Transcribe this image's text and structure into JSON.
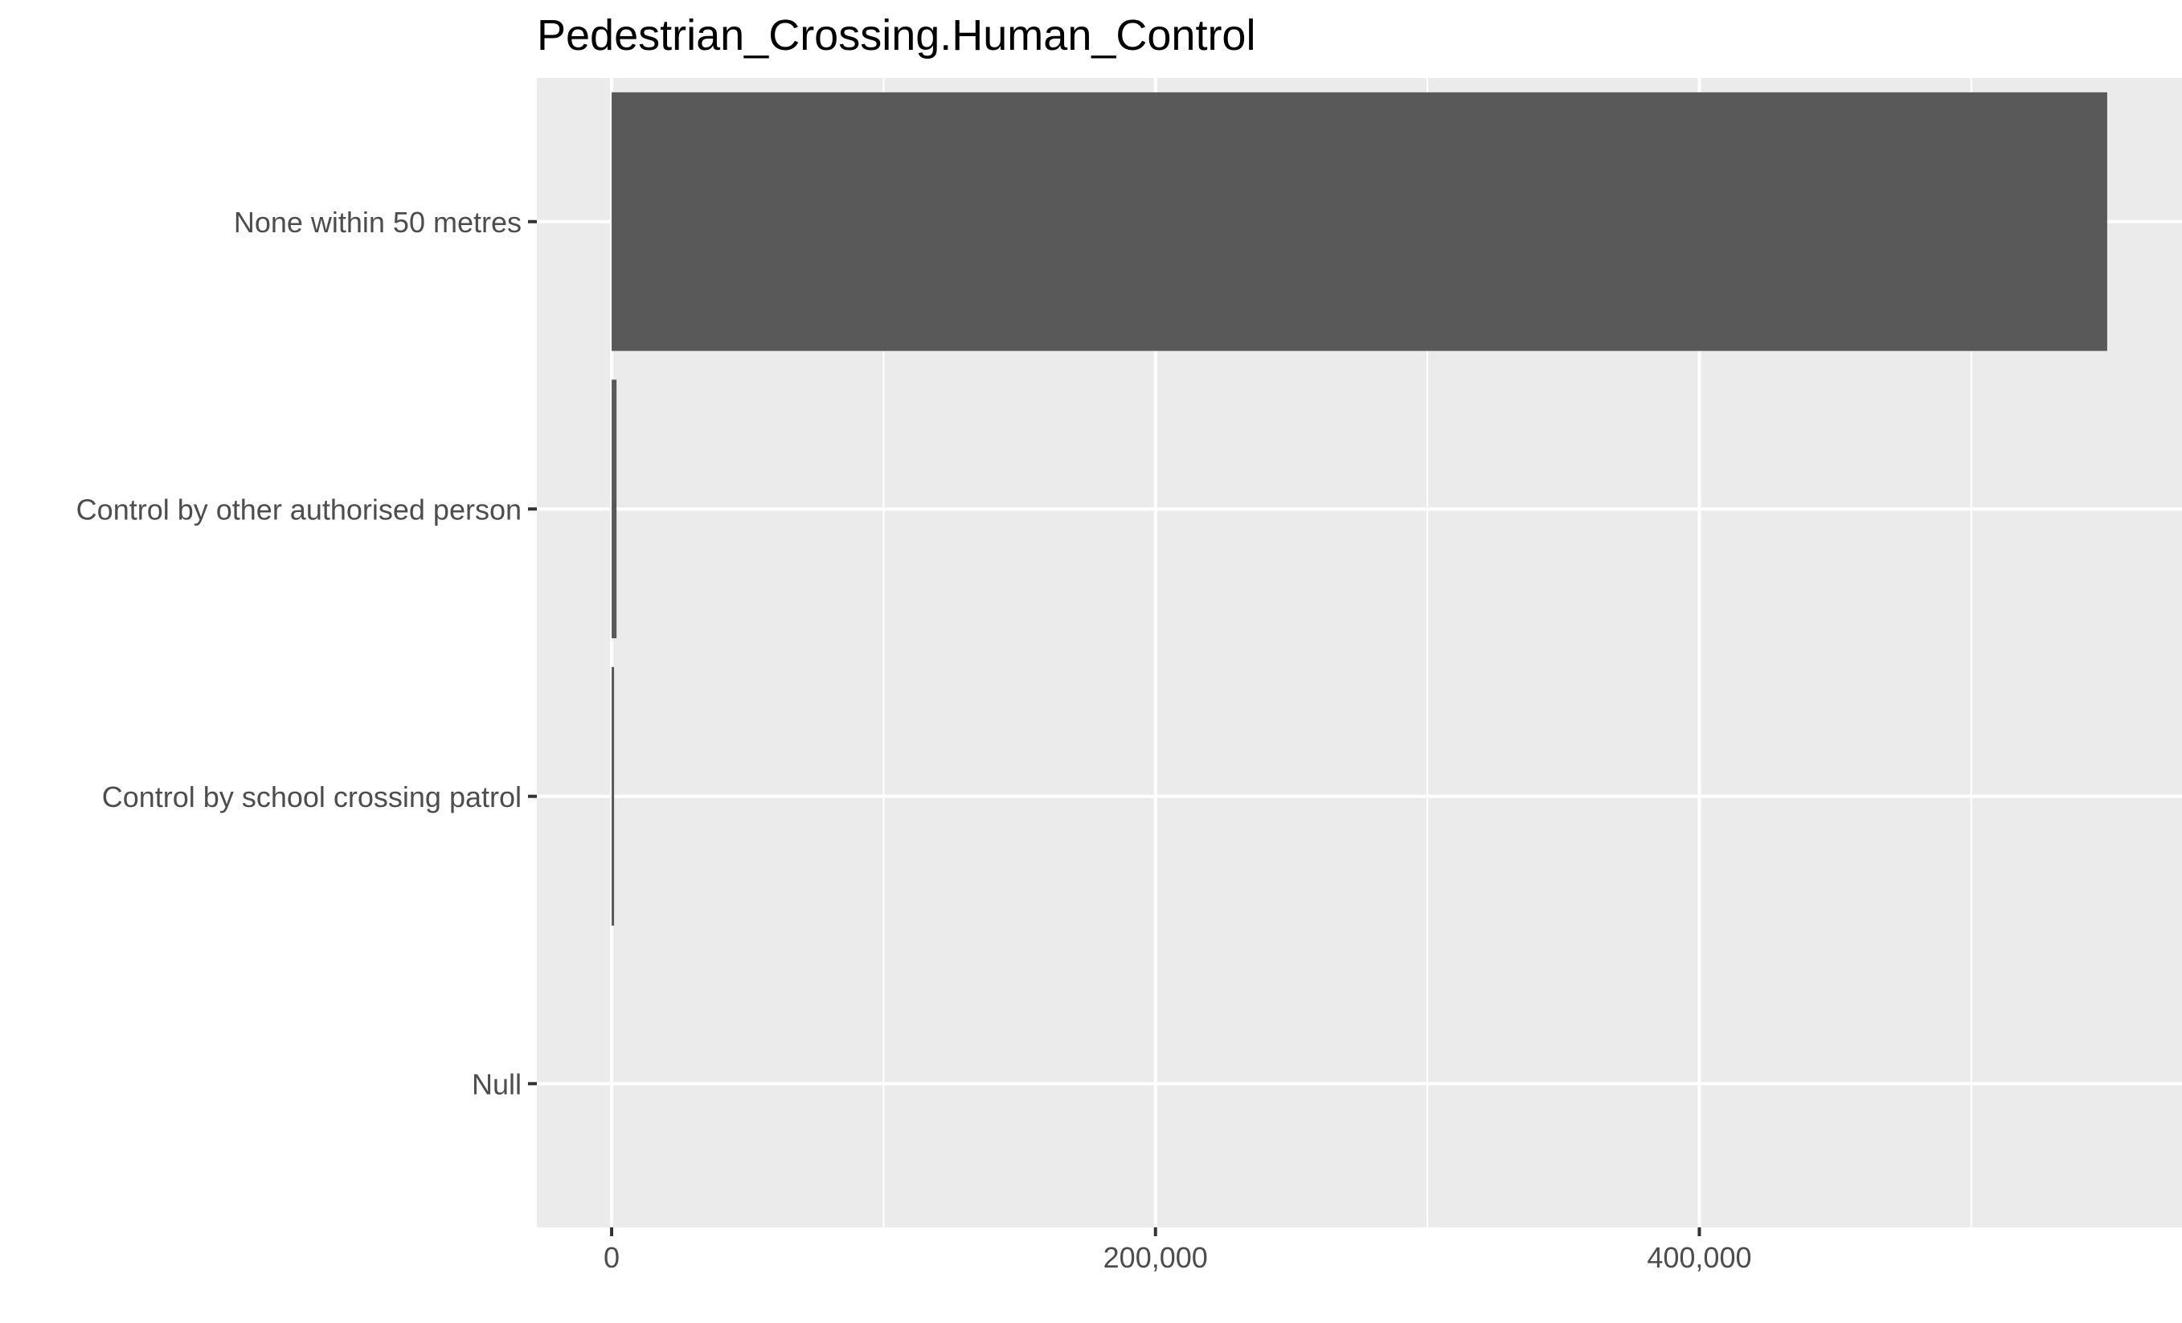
{
  "chart_data": {
    "type": "bar",
    "orientation": "horizontal",
    "title": "Pedestrian_Crossing.Human_Control",
    "xlabel": "",
    "ylabel": "",
    "categories": [
      "None within 50 metres",
      "Control by other authorised person",
      "Control by school crossing patrol",
      "Null"
    ],
    "values": [
      550000,
      1800,
      900,
      0
    ],
    "x_ticks": [
      0,
      200000,
      400000
    ],
    "x_tick_labels": [
      "0",
      "200,000",
      "400,000"
    ],
    "xlim": [
      -27500,
      577500
    ],
    "grid": true,
    "legend": "none",
    "colors": {
      "bar": "#595959",
      "panel": "#ebebeb",
      "grid": "#ffffff",
      "text": "#4d4d4d",
      "title": "#000000"
    }
  }
}
